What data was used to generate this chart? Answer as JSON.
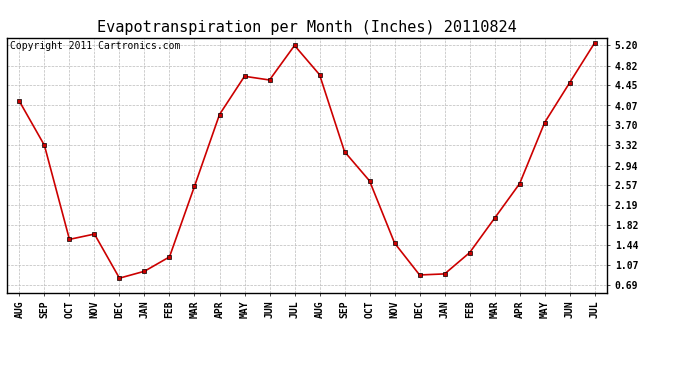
{
  "title": "Evapotranspiration per Month (Inches) 20110824",
  "copyright": "Copyright 2011 Cartronics.com",
  "months": [
    "AUG",
    "SEP",
    "OCT",
    "NOV",
    "DEC",
    "JAN",
    "FEB",
    "MAR",
    "APR",
    "MAY",
    "JUN",
    "JUL",
    "AUG",
    "SEP",
    "OCT",
    "NOV",
    "DEC",
    "JAN",
    "FEB",
    "MAR",
    "APR",
    "MAY",
    "JUN",
    "JUL"
  ],
  "values": [
    4.15,
    3.32,
    1.55,
    1.65,
    0.82,
    0.95,
    1.22,
    2.55,
    3.9,
    4.62,
    4.55,
    5.2,
    4.65,
    3.2,
    2.65,
    1.48,
    0.88,
    0.9,
    1.3,
    1.95,
    2.6,
    3.75,
    4.5,
    5.25
  ],
  "yticks": [
    0.69,
    1.07,
    1.44,
    1.82,
    2.19,
    2.57,
    2.94,
    3.32,
    3.7,
    4.07,
    4.45,
    4.82,
    5.2
  ],
  "ylim_min": 0.55,
  "ylim_max": 5.35,
  "line_color": "#cc0000",
  "marker": "s",
  "marker_color": "#cc0000",
  "marker_size": 3,
  "grid_color": "#bbbbbb",
  "bg_color": "#ffffff",
  "title_fontsize": 11,
  "tick_fontsize": 7,
  "copyright_fontsize": 7
}
